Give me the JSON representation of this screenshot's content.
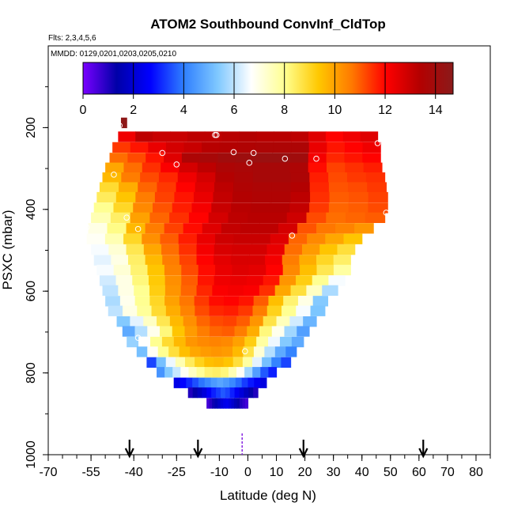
{
  "chart_data": {
    "type": "heatmap",
    "title": "ATOM2 Southbound ConvInf_CldTop",
    "subtitle": "Flts: 2,3,4,5,6",
    "note": "MMDD: 0129,0201,0203,0205,0210",
    "xlabel": "Latitude (deg N)",
    "ylabel": "PSXC (mbar)",
    "xlim": [
      -70,
      85
    ],
    "ylim": [
      1000,
      0
    ],
    "x_ticks": [
      -70,
      -55,
      -40,
      -25,
      -10,
      0,
      10,
      20,
      30,
      40,
      50,
      60,
      70,
      80
    ],
    "y_ticks": [
      200,
      400,
      600,
      800,
      1000
    ],
    "colorbar": {
      "min": 0,
      "max": 14.7,
      "ticks": [
        0,
        2,
        4,
        6,
        8,
        10,
        12,
        14
      ],
      "colors": [
        "#7a00ff",
        "#0000a8",
        "#0000ff",
        "#2f7fff",
        "#7fc8ff",
        "#ffffff",
        "#ffff90",
        "#ffc800",
        "#ff7800",
        "#ff0000",
        "#b40000",
        "#8b1a1a"
      ]
    },
    "grid": false,
    "legend": "colorbar top",
    "rows": [
      {
        "p": 188,
        "x0": -44.5,
        "x1": -42.5,
        "vals": [
          14.6
        ]
      },
      {
        "p": 222,
        "x0": -45.5,
        "x1": 45.5,
        "vals": [
          12.3,
          13.2,
          13.0,
          13.0,
          13.2,
          13.2,
          13.3,
          13.4,
          13.3,
          13.3,
          13.2,
          12.6,
          12.0,
          12.3,
          12.6
        ]
      },
      {
        "p": 248,
        "x0": -47.5,
        "x1": 46.5,
        "vals": [
          11.4,
          11.8,
          12.4,
          12.8,
          13.0,
          13.3,
          13.4,
          13.5,
          13.6,
          13.6,
          13.6,
          12.4,
          11.8,
          12.0,
          12.3
        ]
      },
      {
        "p": 274,
        "x0": -48.5,
        "x1": 46.5,
        "vals": [
          10.8,
          11.2,
          11.8,
          12.6,
          13.6,
          13.8,
          14.0,
          14.1,
          14.2,
          14.2,
          14.0,
          12.2,
          11.6,
          11.8,
          12.0
        ]
      },
      {
        "p": 298,
        "x0": -50,
        "x1": 47,
        "vals": [
          9.9,
          10.8,
          11.5,
          12.1,
          12.8,
          13.2,
          13.6,
          13.7,
          13.8,
          13.8,
          13.6,
          11.9,
          11.3,
          11.5,
          11.7
        ]
      },
      {
        "p": 322,
        "x0": -51,
        "x1": 48,
        "vals": [
          9.6,
          10.6,
          11.2,
          11.6,
          12.3,
          12.8,
          13.4,
          13.6,
          13.8,
          13.8,
          13.6,
          11.7,
          11.2,
          11.4,
          11.5
        ]
      },
      {
        "p": 346,
        "x0": -52,
        "x1": 48.5,
        "vals": [
          8.9,
          9.8,
          10.9,
          11.4,
          12.0,
          12.6,
          13.2,
          13.5,
          13.6,
          13.6,
          13.4,
          11.6,
          11.1,
          11.2,
          11.4
        ]
      },
      {
        "p": 370,
        "x0": -53,
        "x1": 49,
        "vals": [
          8.5,
          9.4,
          10.6,
          11.3,
          11.8,
          12.4,
          13.1,
          13.4,
          13.5,
          13.5,
          13.2,
          11.5,
          11.0,
          11.1,
          11.3
        ]
      },
      {
        "p": 396,
        "x0": -54,
        "x1": 49,
        "vals": [
          8.0,
          9.0,
          10.4,
          11.1,
          11.7,
          12.2,
          13.0,
          13.3,
          13.4,
          13.4,
          13.1,
          11.4,
          10.9,
          11.0,
          11.2
        ]
      },
      {
        "p": 420,
        "x0": -55,
        "x1": 48,
        "vals": [
          7.6,
          8.4,
          10.0,
          10.9,
          11.5,
          12.0,
          12.8,
          13.2,
          13.3,
          13.3,
          12.9,
          11.2,
          10.8,
          10.9,
          11.0
        ]
      },
      {
        "p": 446,
        "x0": -56,
        "x1": 44,
        "vals": [
          7.0,
          8.1,
          9.6,
          10.6,
          11.3,
          11.9,
          12.6,
          13.1,
          13.2,
          13.2,
          12.8,
          11.1,
          10.7,
          10.5,
          10.2
        ]
      },
      {
        "p": 472,
        "x0": -56.5,
        "x1": 40,
        "vals": [
          6.8,
          7.6,
          9.0,
          10.3,
          11.0,
          11.7,
          12.4,
          12.9,
          13.0,
          13.0,
          12.6,
          10.9,
          10.4,
          9.9,
          9.4
        ]
      },
      {
        "p": 498,
        "x0": -55,
        "x1": 37.5,
        "vals": [
          6.6,
          7.2,
          8.6,
          9.9,
          10.8,
          11.5,
          12.2,
          12.7,
          12.8,
          12.8,
          12.4,
          10.8,
          10.1,
          9.4,
          8.8
        ]
      },
      {
        "p": 524,
        "x0": -54,
        "x1": 36,
        "vals": [
          6.4,
          7.0,
          8.4,
          9.6,
          10.6,
          11.3,
          12.0,
          12.5,
          12.7,
          12.7,
          12.2,
          10.6,
          9.8,
          9.0,
          8.4
        ]
      },
      {
        "p": 548,
        "x0": -53,
        "x1": 36,
        "vals": [
          6.6,
          7.2,
          8.3,
          9.4,
          10.5,
          11.2,
          11.9,
          12.4,
          12.6,
          12.5,
          12.0,
          10.4,
          9.5,
          8.6,
          7.8
        ]
      },
      {
        "p": 574,
        "x0": -52,
        "x1": 34,
        "vals": [
          6.2,
          7.0,
          8.2,
          9.3,
          10.3,
          11.0,
          11.8,
          12.3,
          12.4,
          12.3,
          11.8,
          10.2,
          9.2,
          8.0,
          6.6
        ]
      },
      {
        "p": 598,
        "x0": -51,
        "x1": 31.5,
        "vals": [
          6.0,
          7.0,
          8.0,
          9.2,
          10.2,
          10.9,
          11.6,
          12.1,
          12.2,
          12.1,
          11.5,
          9.9,
          8.8,
          7.4,
          5.8
        ]
      },
      {
        "p": 624,
        "x0": -50,
        "x1": 28,
        "vals": [
          5.8,
          6.9,
          8.0,
          9.0,
          10.0,
          10.7,
          11.4,
          11.9,
          12.0,
          11.8,
          11.0,
          9.5,
          8.3,
          7.0,
          5.4
        ]
      },
      {
        "p": 648,
        "x0": -49,
        "x1": 27,
        "vals": [
          6.0,
          7.0,
          7.9,
          8.9,
          9.8,
          10.5,
          11.2,
          11.6,
          11.7,
          11.4,
          10.6,
          9.1,
          8.0,
          6.6,
          5.3
        ]
      },
      {
        "p": 674,
        "x0": -46,
        "x1": 24,
        "vals": [
          5.4,
          6.4,
          7.4,
          8.6,
          9.6,
          10.3,
          10.9,
          11.2,
          11.3,
          11.0,
          10.2,
          8.7,
          7.5,
          6.2,
          5.0
        ]
      },
      {
        "p": 698,
        "x0": -44,
        "x1": 21.5,
        "vals": [
          4.8,
          5.9,
          6.9,
          8.2,
          9.4,
          10.1,
          10.6,
          10.9,
          11.0,
          10.6,
          9.8,
          8.2,
          6.9,
          5.7,
          4.6
        ]
      },
      {
        "p": 724,
        "x0": -42.5,
        "x1": 19.5,
        "vals": [
          5.6,
          6.7,
          8.0,
          8.9,
          9.6,
          10.2,
          10.4,
          10.5,
          10.4,
          10.0,
          9.2,
          7.8,
          6.5,
          5.4,
          4.8
        ]
      },
      {
        "p": 748,
        "x0": -39,
        "x1": 17,
        "vals": [
          5.2,
          6.8,
          8.0,
          8.8,
          9.5,
          9.9,
          10.1,
          10.2,
          10.1,
          9.6,
          8.7,
          7.2,
          5.9,
          4.8,
          4.1
        ]
      },
      {
        "p": 774,
        "x0": -35.5,
        "x1": 15,
        "vals": [
          3.4,
          5.2,
          6.5,
          7.6,
          8.5,
          9.1,
          9.5,
          9.6,
          9.4,
          8.8,
          7.8,
          6.4,
          5.2,
          4.1,
          3.4
        ]
      },
      {
        "p": 798,
        "x0": -32,
        "x1": 10,
        "vals": [
          4.4,
          5.4,
          6.1,
          6.8,
          7.4,
          7.9,
          8.3,
          8.4,
          8.2,
          7.6,
          6.8,
          5.7,
          4.6,
          3.6,
          3.0
        ]
      },
      {
        "p": 824,
        "x0": -26,
        "x1": 6.5,
        "vals": [
          2.3,
          2.7,
          3.1,
          3.5,
          3.9,
          4.2,
          4.5,
          4.7,
          4.5,
          4.2,
          3.8,
          3.3,
          2.9,
          2.5,
          2.2
        ]
      },
      {
        "p": 848,
        "x0": -21,
        "x1": 3.5,
        "vals": [
          1.0,
          1.3,
          1.7,
          2.1,
          2.6,
          3.0,
          3.3,
          3.6,
          3.4,
          3.0,
          2.5,
          2.1,
          1.7,
          1.3,
          1.0
        ]
      },
      {
        "p": 874,
        "x0": -14.5,
        "x1": 0,
        "vals": [
          0.6,
          0.9,
          1.2,
          1.5,
          1.8,
          2.1,
          2.3,
          2.4,
          2.2,
          1.9,
          1.6,
          1.3,
          1.0,
          0.8,
          0.6
        ]
      }
    ],
    "points": [
      {
        "lat": -46.5,
        "p": 195
      },
      {
        "lat": -45,
        "p": 195
      },
      {
        "lat": -30,
        "p": 262
      },
      {
        "lat": -25,
        "p": 290
      },
      {
        "lat": -47,
        "p": 315
      },
      {
        "lat": -42.5,
        "p": 420
      },
      {
        "lat": -38.5,
        "p": 448
      },
      {
        "lat": -56.5,
        "p": 444
      },
      {
        "lat": -38.5,
        "p": 714
      },
      {
        "lat": -11.5,
        "p": 218
      },
      {
        "lat": -11,
        "p": 218
      },
      {
        "lat": -5,
        "p": 260
      },
      {
        "lat": 2,
        "p": 262
      },
      {
        "lat": 0.5,
        "p": 286
      },
      {
        "lat": 13,
        "p": 276
      },
      {
        "lat": 24,
        "p": 276
      },
      {
        "lat": 15.5,
        "p": 464
      },
      {
        "lat": -1,
        "p": 747
      },
      {
        "lat": 45.5,
        "p": 238
      },
      {
        "lat": 48.5,
        "p": 408
      }
    ],
    "arrows_lat": [
      -41.5,
      -17.5,
      19.5,
      61.5
    ],
    "dashed_marker_lat": -2
  }
}
